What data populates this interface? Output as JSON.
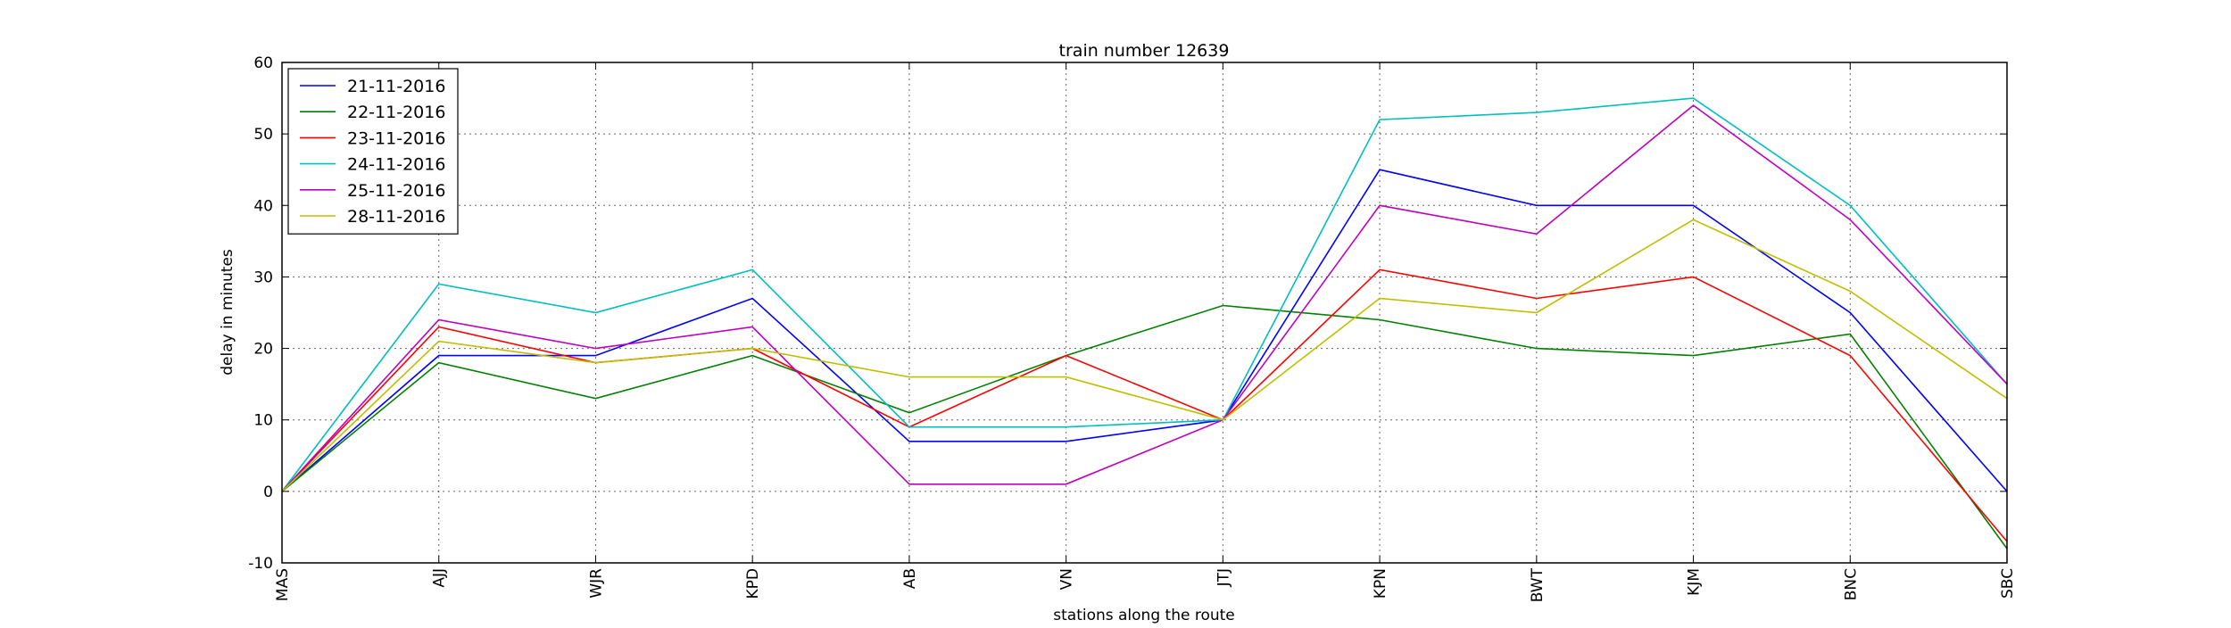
{
  "chart_data": {
    "type": "line",
    "title": "train number 12639",
    "xlabel": "stations along the route",
    "ylabel": "delay in minutes",
    "categories": [
      "MAS",
      "AJJ",
      "WJR",
      "KPD",
      "AB",
      "VN",
      "JTJ",
      "KPN",
      "BWT",
      "KJM",
      "BNC",
      "SBC"
    ],
    "ylim": [
      -10,
      60
    ],
    "yticks": [
      -10,
      0,
      10,
      20,
      30,
      40,
      50,
      60
    ],
    "grid": true,
    "legend_position": "upper-left",
    "series": [
      {
        "name": "21-11-2016",
        "color": "#0000ff",
        "values": [
          0,
          19,
          19,
          27,
          7,
          7,
          10,
          45,
          40,
          40,
          25,
          0
        ]
      },
      {
        "name": "22-11-2016",
        "color": "#008000",
        "values": [
          0,
          18,
          13,
          19,
          11,
          19,
          26,
          24,
          20,
          19,
          22,
          -8
        ]
      },
      {
        "name": "23-11-2016",
        "color": "#ff0000",
        "values": [
          0,
          23,
          18,
          20,
          9,
          19,
          10,
          31,
          27,
          30,
          19,
          -7
        ]
      },
      {
        "name": "24-11-2016",
        "color": "#00bfbf",
        "values": [
          0,
          29,
          25,
          31,
          9,
          9,
          10,
          52,
          53,
          55,
          40,
          15
        ]
      },
      {
        "name": "25-11-2016",
        "color": "#bf00bf",
        "values": [
          0,
          24,
          20,
          23,
          1,
          1,
          10,
          40,
          36,
          54,
          38,
          15
        ]
      },
      {
        "name": "28-11-2016",
        "color": "#bfbf00",
        "values": [
          0,
          21,
          18,
          20,
          16,
          16,
          10,
          27,
          25,
          38,
          28,
          13
        ]
      }
    ]
  }
}
